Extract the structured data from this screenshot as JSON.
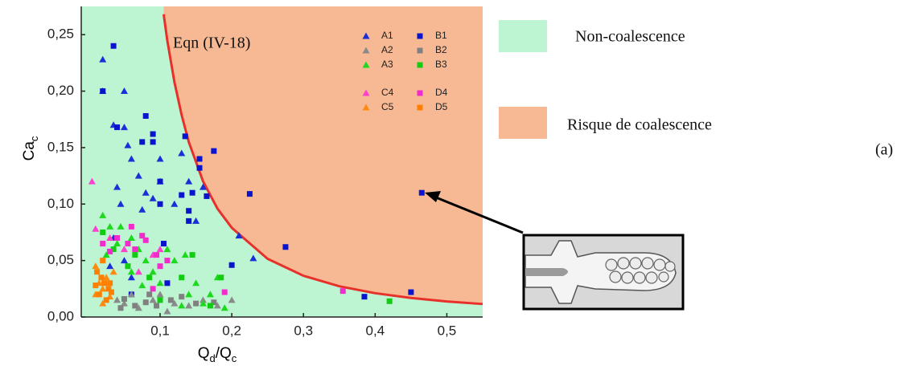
{
  "chart_data": {
    "type": "scatter",
    "annotation": "Eqn (IV-18)",
    "x_label_parts": [
      "Q",
      "d",
      "/Q",
      "c"
    ],
    "y_label_parts": [
      "Ca",
      "c"
    ],
    "xlim": [
      -0.01,
      0.55
    ],
    "ylim": [
      0,
      0.275
    ],
    "xticks": [
      {
        "value": 0.1,
        "label": "0,1"
      },
      {
        "value": 0.2,
        "label": "0,2"
      },
      {
        "value": 0.3,
        "label": "0,3"
      },
      {
        "value": 0.4,
        "label": "0,4"
      },
      {
        "value": 0.5,
        "label": "0,5"
      }
    ],
    "yticks": [
      {
        "value": 0,
        "label": "0,00"
      },
      {
        "value": 0.05,
        "label": "0,05"
      },
      {
        "value": 0.1,
        "label": "0,10"
      },
      {
        "value": 0.15,
        "label": "0,15"
      },
      {
        "value": 0.2,
        "label": "0,20"
      },
      {
        "value": 0.25,
        "label": "0,25"
      }
    ],
    "curve": {
      "color": "#e8302a",
      "x": [
        0.105,
        0.11,
        0.12,
        0.13,
        0.14,
        0.16,
        0.18,
        0.2,
        0.25,
        0.3,
        0.35,
        0.4,
        0.45,
        0.5,
        0.55
      ],
      "y": [
        0.268,
        0.245,
        0.208,
        0.179,
        0.155,
        0.12,
        0.096,
        0.079,
        0.0515,
        0.0365,
        0.0272,
        0.0211,
        0.0169,
        0.0138,
        0.0115
      ]
    },
    "regions": [
      {
        "name": "Non-coalescence",
        "color": "#bdf5d3"
      },
      {
        "name": "Risque de coalescence",
        "color": "#f7b994"
      }
    ],
    "panel_label": "(a)",
    "series": [
      {
        "name": "A1",
        "color": "#1a2fd6",
        "marker": "triangle",
        "x": [
          0.02,
          0.02,
          0.035,
          0.05,
          0.05,
          0.055,
          0.06,
          0.04,
          0.045,
          0.07,
          0.08,
          0.1,
          0.1,
          0.13,
          0.14,
          0.12,
          0.15,
          0.16,
          0.035,
          0.05,
          0.21,
          0.23,
          0.03,
          0.06,
          0.075,
          0.09
        ],
        "y": [
          0.228,
          0.2,
          0.17,
          0.2,
          0.168,
          0.152,
          0.14,
          0.115,
          0.1,
          0.125,
          0.11,
          0.14,
          0.12,
          0.145,
          0.12,
          0.1,
          0.085,
          0.115,
          0.07,
          0.05,
          0.072,
          0.052,
          0.045,
          0.035,
          0.095,
          0.105
        ]
      },
      {
        "name": "B1",
        "color": "#0a14cc",
        "marker": "square",
        "x": [
          0.035,
          0.02,
          0.04,
          0.075,
          0.08,
          0.09,
          0.09,
          0.1,
          0.135,
          0.155,
          0.155,
          0.175,
          0.165,
          0.13,
          0.145,
          0.14,
          0.1,
          0.225,
          0.2,
          0.275,
          0.385,
          0.45,
          0.465,
          0.14,
          0.105,
          0.06,
          0.11
        ],
        "y": [
          0.24,
          0.2,
          0.168,
          0.155,
          0.178,
          0.162,
          0.155,
          0.12,
          0.16,
          0.14,
          0.132,
          0.147,
          0.107,
          0.108,
          0.11,
          0.094,
          0.1,
          0.109,
          0.046,
          0.062,
          0.018,
          0.022,
          0.11,
          0.085,
          0.065,
          0.02,
          0.03
        ]
      },
      {
        "name": "A2",
        "color": "#8a8a8a",
        "marker": "triangle",
        "x": [
          0.05,
          0.07,
          0.09,
          0.1,
          0.12,
          0.14,
          0.16,
          0.2,
          0.18,
          0.06,
          0.11,
          0.04
        ],
        "y": [
          0.012,
          0.008,
          0.015,
          0.02,
          0.012,
          0.01,
          0.015,
          0.015,
          0.01,
          0.02,
          0.005,
          0.015
        ]
      },
      {
        "name": "B2",
        "color": "#808080",
        "marker": "square",
        "x": [
          0.05,
          0.065,
          0.08,
          0.095,
          0.115,
          0.13,
          0.15,
          0.045,
          0.085,
          0.175
        ],
        "y": [
          0.016,
          0.01,
          0.013,
          0.01,
          0.015,
          0.018,
          0.012,
          0.008,
          0.02,
          0.013
        ]
      },
      {
        "name": "A3",
        "color": "#1ed81e",
        "marker": "triangle",
        "x": [
          0.02,
          0.03,
          0.04,
          0.025,
          0.06,
          0.07,
          0.08,
          0.09,
          0.12,
          0.135,
          0.15,
          0.14,
          0.13,
          0.18,
          0.17,
          0.06,
          0.1,
          0.11,
          0.045,
          0.075,
          0.19,
          0.16
        ],
        "y": [
          0.09,
          0.08,
          0.065,
          0.055,
          0.07,
          0.06,
          0.05,
          0.04,
          0.05,
          0.055,
          0.03,
          0.02,
          0.01,
          0.035,
          0.02,
          0.04,
          0.03,
          0.06,
          0.08,
          0.028,
          0.008,
          0.012
        ]
      },
      {
        "name": "B3",
        "color": "#11cc11",
        "marker": "square",
        "x": [
          0.02,
          0.035,
          0.055,
          0.085,
          0.13,
          0.145,
          0.185,
          0.17,
          0.42,
          0.1,
          0.065
        ],
        "y": [
          0.075,
          0.06,
          0.045,
          0.035,
          0.035,
          0.055,
          0.035,
          0.01,
          0.014,
          0.015,
          0.055
        ]
      },
      {
        "name": "C4",
        "color": "#ff3fd0",
        "marker": "triangle",
        "x": [
          0.005,
          0.01,
          0.03,
          0.05,
          0.09,
          0.07,
          0.1
        ],
        "y": [
          0.12,
          0.078,
          0.07,
          0.06,
          0.055,
          0.04,
          0.06
        ]
      },
      {
        "name": "D4",
        "color": "#f22ccc",
        "marker": "square",
        "x": [
          0.02,
          0.04,
          0.055,
          0.065,
          0.075,
          0.08,
          0.095,
          0.1,
          0.11,
          0.09,
          0.19,
          0.355,
          0.06,
          0.03
        ],
        "y": [
          0.065,
          0.07,
          0.065,
          0.06,
          0.072,
          0.068,
          0.055,
          0.045,
          0.05,
          0.025,
          0.022,
          0.023,
          0.08,
          0.058
        ]
      },
      {
        "name": "C5",
        "color": "#ff8a10",
        "marker": "triangle",
        "x": [
          0.01,
          0.015,
          0.02,
          0.025,
          0.01,
          0.03,
          0.02,
          0.035
        ],
        "y": [
          0.045,
          0.03,
          0.025,
          0.035,
          0.02,
          0.018,
          0.012,
          0.04
        ]
      },
      {
        "name": "D5",
        "color": "#ff7f00",
        "marker": "square",
        "x": [
          0.012,
          0.018,
          0.022,
          0.028,
          0.015,
          0.025,
          0.01,
          0.03,
          0.02,
          0.032
        ],
        "y": [
          0.04,
          0.035,
          0.03,
          0.025,
          0.02,
          0.015,
          0.028,
          0.03,
          0.05,
          0.022
        ]
      }
    ]
  }
}
